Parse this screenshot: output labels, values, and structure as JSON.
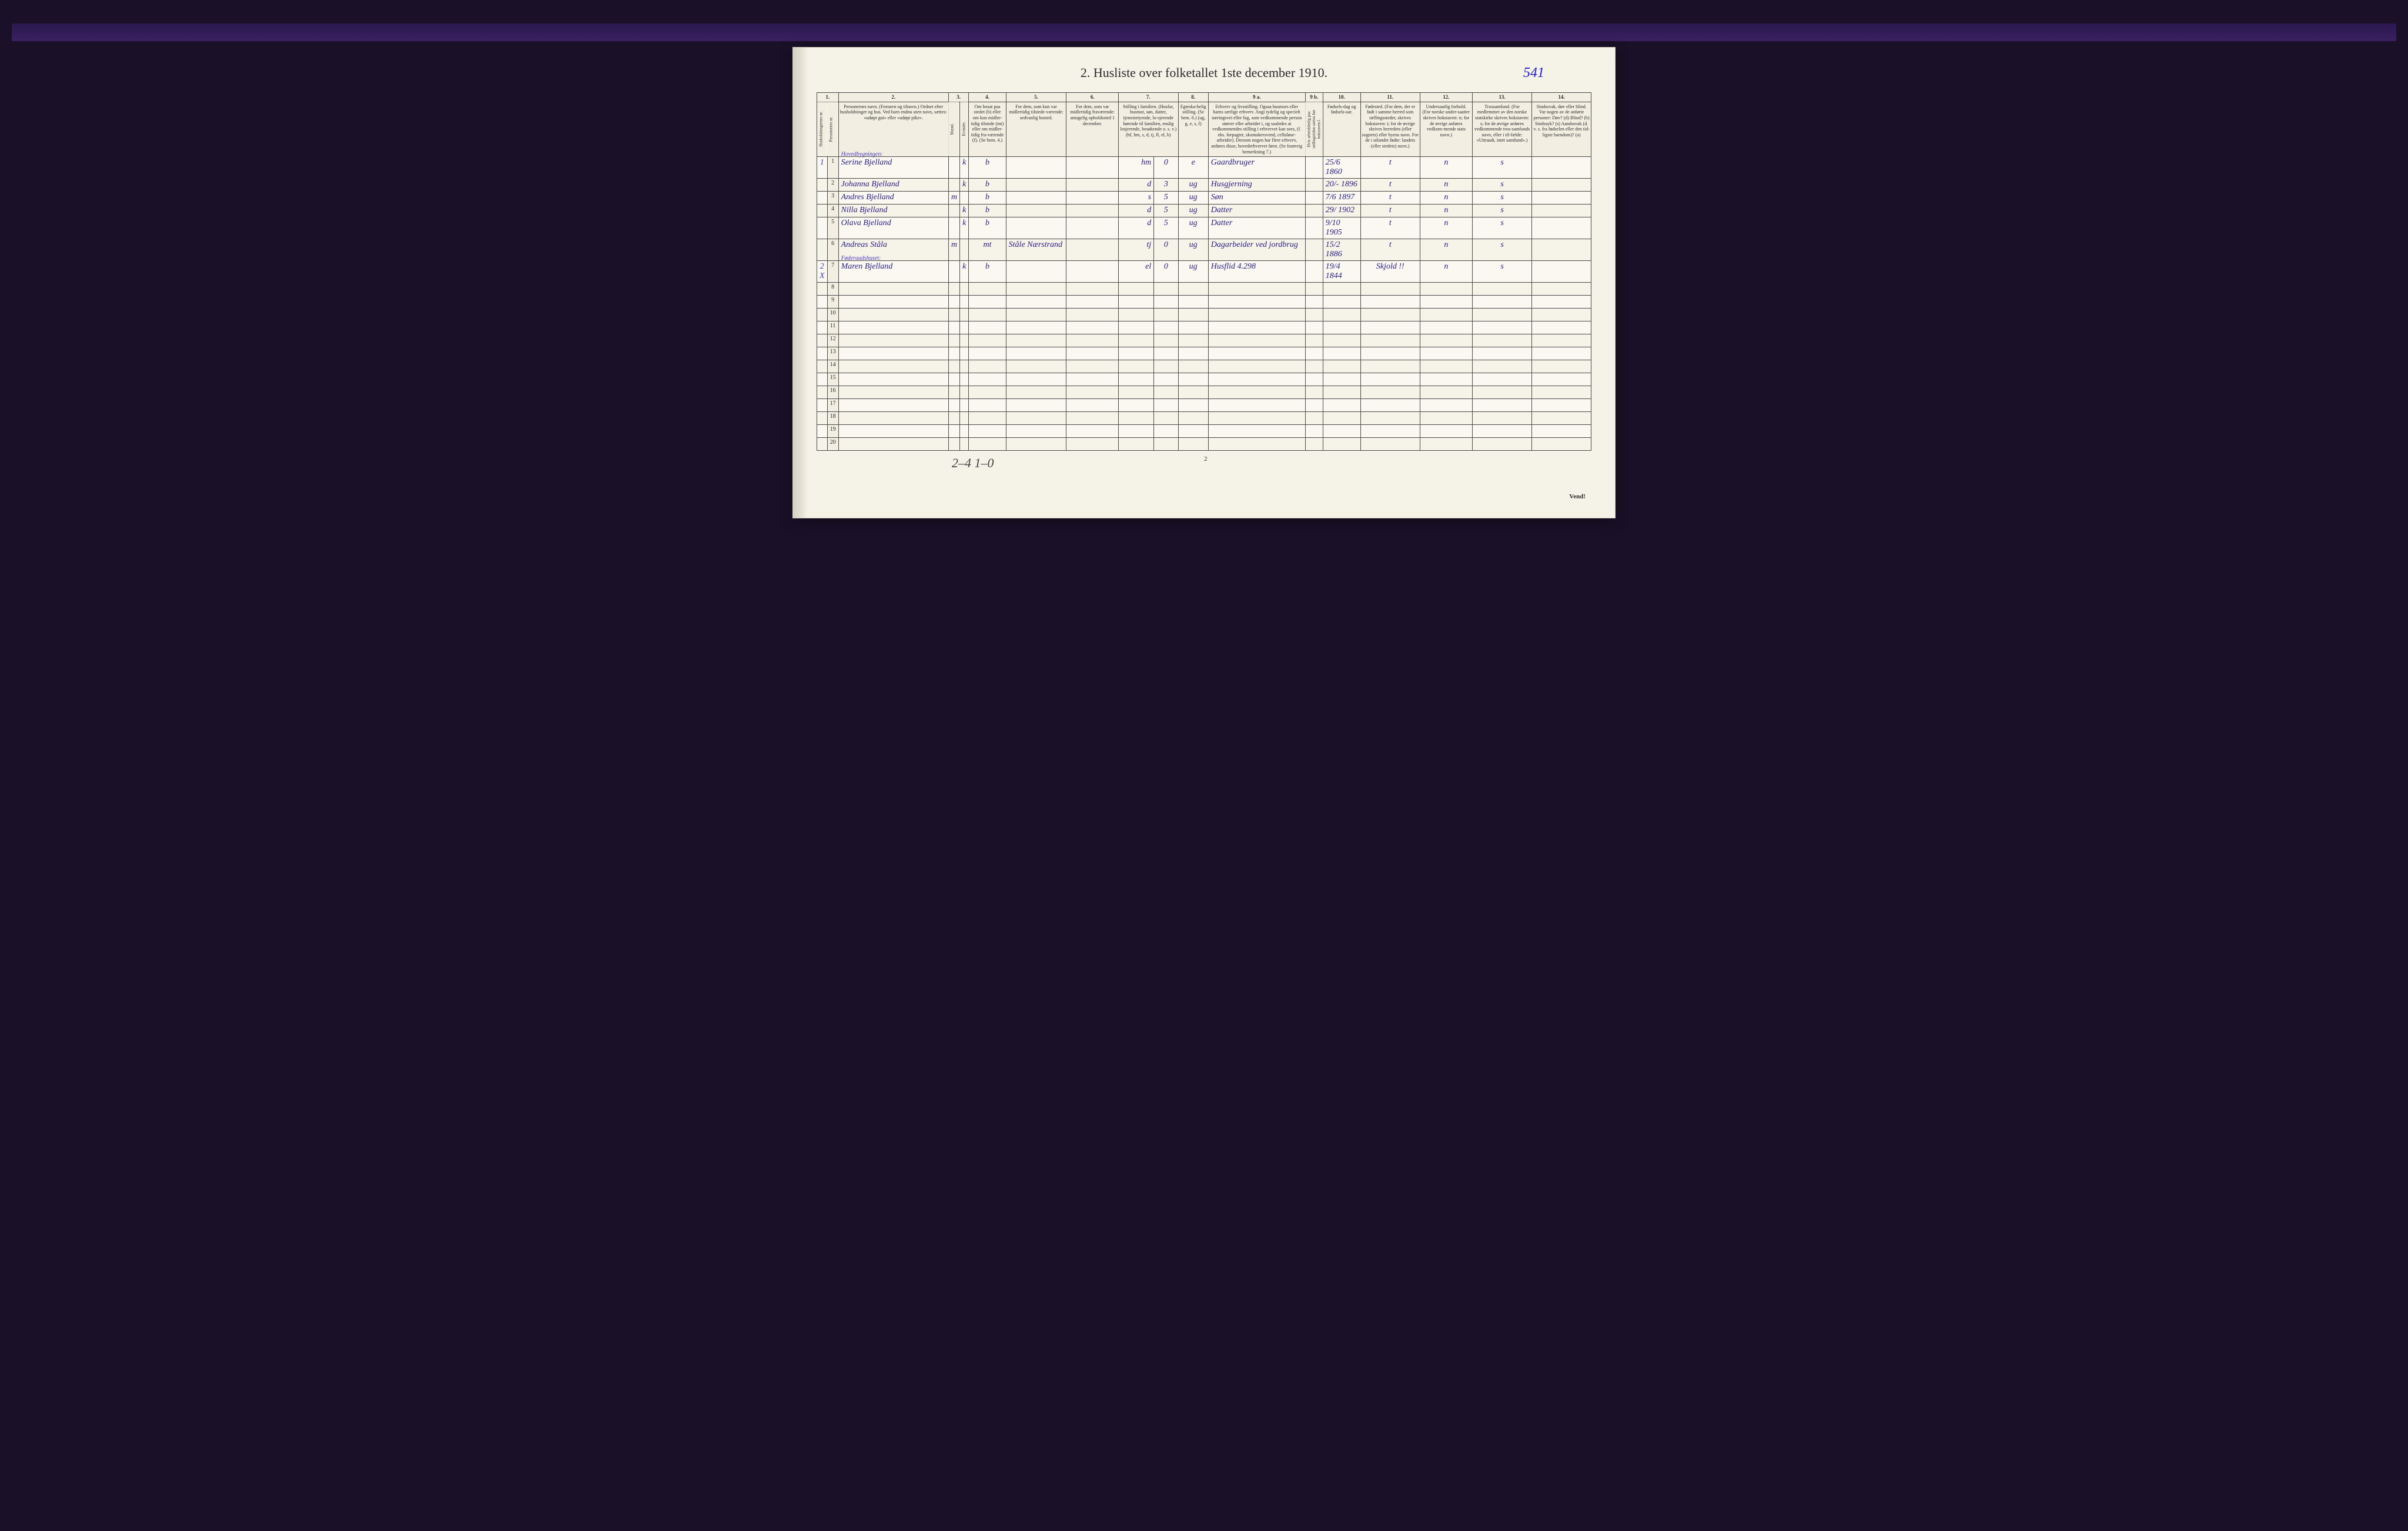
{
  "page_number_handwritten": "541",
  "title": "2.  Husliste over folketallet 1ste december 1910.",
  "footer_handwritten": "2–4   1–0",
  "footer_page": "2",
  "vend": "Vend!",
  "colors": {
    "page_bg": "#f5f2e8",
    "ink_printed": "#2a2a2a",
    "ink_handwritten": "#2a2080",
    "ink_pencil": "#444",
    "border": "#4a4a4a"
  },
  "column_numbers": [
    "1.",
    "2.",
    "3.",
    "4.",
    "5.",
    "6.",
    "7.",
    "8.",
    "9 a.",
    "9 b.",
    "10.",
    "11.",
    "12.",
    "13.",
    "14."
  ],
  "headers": {
    "c1a": "Husholdningernes nr.",
    "c1b": "Personernes nr.",
    "c2": "Personernes navn.\n(Fornavn og tilnavn.)\nOrdnet efter husholdninger og hus.\nVed barn endnu uten navn, sættes: «udøpt gut» eller «udøpt pike».",
    "c3_top": "Kjøn.",
    "c3a": "Mænd.",
    "c3b": "Kvinder.",
    "c3_bot": "m. k.",
    "c4": "Om bosat paa stedet (b) eller om kun midler-tidig tilstede (mt) eller om midler-tidig fra-værende (f).\n(Se bem. 4.)",
    "c5": "For dem, som kun var midlertidig tilstede-værende:\nsedvanlig bosted.",
    "c6": "For dem, som var midlertidig fraværende:\nantagelig opholdssted 1 december.",
    "c7": "Stilling i familien.\n(Husfar, husmor, søn, datter, tjenestetyende, lo-sjerende hørende til familien, enslig losjerende, besøkende o. s. v.)\n(hf, hm, s, d, tj, fl, el, b)",
    "c8": "Egteska-belig stilling.\n(Se bem. 6.)\n(ug, g, e, s, f)",
    "c9a": "Erhverv og livsstilling.\nOgsaa husmors eller barns særlige erhverv.\nAngi tydelig og specielt næringsvei eller fag, som vedkommende person utøver eller arbeider i, og saaledes at vedkommendes stilling i erhvervet kan sees, (f. eks. forpagter, skomakersvend, celluløse-arbeider). Dersom nogen har flere erhverv, anføres disse, hovederhvervet først.\n(Se forøvrig bemerkning 7.)",
    "c9b": "Hvis arbeidsledig paa tællingstiden sættes her bokstaven l.",
    "c10": "Fødsels-dag og fødsels-aar.",
    "c11": "Fødested.\n(For dem, der er født i samme herred som tællingsstedet, skrives bokstaven: t; for de øvrige skrives herredets (eller sognets) eller byens navn. For de i utlandet fødte: landets (eller stedets) navn.)",
    "c12": "Undersaatlig forhold.\n(For norske under-saatter skrives bokstaven: n; for de øvrige anføres vedkom-mende stats navn.)",
    "c13": "Trossamfund.\n(For medlemmer av den norske statskirke skrives bokstaven: s; for de øvrige anføres vedkommende tros-samfunds navn, eller i til-fælde: «Uttraadt, intet samfund».)",
    "c14": "Sindssvak, døv eller blind.\nVar nogen av de anførte personer:\nDøv? (d)\nBlind? (b)\nSindssyk? (s)\nAandssvak (d. v. s. fra fødselen eller den tid-ligste barndom)? (a)"
  },
  "group_label_1": "Hovedbygningen:",
  "group_label_2": "Føderaadshuset:",
  "rows": [
    {
      "hh": "1",
      "pn": "1",
      "name": "Serine Bjelland",
      "m": "",
      "k": "k",
      "res": "b",
      "c5": "",
      "c6": "",
      "fam": "hm",
      "c7b": "0",
      "eg": "e",
      "erhv": "Gaardbruger",
      "c9b": "",
      "fdt": "25/6 1860",
      "fsted": "t",
      "und": "n",
      "tro": "s",
      "c14": ""
    },
    {
      "hh": "",
      "pn": "2",
      "name": "Johanna Bjelland",
      "m": "",
      "k": "k",
      "res": "b",
      "c5": "",
      "c6": "",
      "fam": "d",
      "c7b": "3",
      "eg": "ug",
      "erhv": "Husgjerning",
      "c9b": "",
      "fdt": "20/- 1896",
      "fsted": "t",
      "und": "n",
      "tro": "s",
      "c14": ""
    },
    {
      "hh": "",
      "pn": "3",
      "name": "Andres Bjelland",
      "m": "m",
      "k": "",
      "res": "b",
      "c5": "",
      "c6": "",
      "fam": "s",
      "c7b": "5",
      "eg": "ug",
      "erhv": "Søn",
      "c9b": "",
      "fdt": "7/6 1897",
      "fsted": "t",
      "und": "n",
      "tro": "s",
      "c14": ""
    },
    {
      "hh": "",
      "pn": "4",
      "name": "Nilla Bjelland",
      "m": "",
      "k": "k",
      "res": "b",
      "c5": "",
      "c6": "",
      "fam": "d",
      "c7b": "5",
      "eg": "ug",
      "erhv": "Datter",
      "c9b": "",
      "fdt": "29/ 1902",
      "fsted": "t",
      "und": "n",
      "tro": "s",
      "c14": ""
    },
    {
      "hh": "",
      "pn": "5",
      "name": "Olava Bjelland",
      "m": "",
      "k": "k",
      "res": "b",
      "c5": "",
      "c6": "",
      "fam": "d",
      "c7b": "5",
      "eg": "ug",
      "erhv": "Datter",
      "c9b": "",
      "fdt": "9/10 1905",
      "fsted": "t",
      "und": "n",
      "tro": "s",
      "c14": ""
    },
    {
      "hh": "",
      "pn": "6",
      "name": "Andreas Ståla",
      "m": "m",
      "k": "",
      "res": "mt",
      "c5": "Ståle Nærstrand",
      "c6": "",
      "fam": "tj",
      "c7b": "0",
      "eg": "ug",
      "erhv": "Dagarbeider ved jordbrug",
      "c9b": "",
      "fdt": "15/2 1886",
      "fsted": "t",
      "und": "n",
      "tro": "s",
      "c14": ""
    },
    {
      "hh": "2 X",
      "pn": "7",
      "name": "Maren Bjelland",
      "m": "",
      "k": "k",
      "res": "b",
      "c5": "",
      "c6": "",
      "fam": "el",
      "c7b": "0",
      "eg": "ug",
      "erhv": "Husflid 4.298",
      "c9b": "",
      "fdt": "19/4 1844",
      "fsted": "Skjold !!",
      "und": "n",
      "tro": "s",
      "c14": ""
    },
    {
      "hh": "",
      "pn": "8",
      "name": "",
      "m": "",
      "k": "",
      "res": "",
      "c5": "",
      "c6": "",
      "fam": "",
      "c7b": "",
      "eg": "",
      "erhv": "",
      "c9b": "",
      "fdt": "",
      "fsted": "",
      "und": "",
      "tro": "",
      "c14": ""
    },
    {
      "hh": "",
      "pn": "9",
      "name": "",
      "m": "",
      "k": "",
      "res": "",
      "c5": "",
      "c6": "",
      "fam": "",
      "c7b": "",
      "eg": "",
      "erhv": "",
      "c9b": "",
      "fdt": "",
      "fsted": "",
      "und": "",
      "tro": "",
      "c14": ""
    },
    {
      "hh": "",
      "pn": "10",
      "name": "",
      "m": "",
      "k": "",
      "res": "",
      "c5": "",
      "c6": "",
      "fam": "",
      "c7b": "",
      "eg": "",
      "erhv": "",
      "c9b": "",
      "fdt": "",
      "fsted": "",
      "und": "",
      "tro": "",
      "c14": ""
    },
    {
      "hh": "",
      "pn": "11",
      "name": "",
      "m": "",
      "k": "",
      "res": "",
      "c5": "",
      "c6": "",
      "fam": "",
      "c7b": "",
      "eg": "",
      "erhv": "",
      "c9b": "",
      "fdt": "",
      "fsted": "",
      "und": "",
      "tro": "",
      "c14": ""
    },
    {
      "hh": "",
      "pn": "12",
      "name": "",
      "m": "",
      "k": "",
      "res": "",
      "c5": "",
      "c6": "",
      "fam": "",
      "c7b": "",
      "eg": "",
      "erhv": "",
      "c9b": "",
      "fdt": "",
      "fsted": "",
      "und": "",
      "tro": "",
      "c14": ""
    },
    {
      "hh": "",
      "pn": "13",
      "name": "",
      "m": "",
      "k": "",
      "res": "",
      "c5": "",
      "c6": "",
      "fam": "",
      "c7b": "",
      "eg": "",
      "erhv": "",
      "c9b": "",
      "fdt": "",
      "fsted": "",
      "und": "",
      "tro": "",
      "c14": ""
    },
    {
      "hh": "",
      "pn": "14",
      "name": "",
      "m": "",
      "k": "",
      "res": "",
      "c5": "",
      "c6": "",
      "fam": "",
      "c7b": "",
      "eg": "",
      "erhv": "",
      "c9b": "",
      "fdt": "",
      "fsted": "",
      "und": "",
      "tro": "",
      "c14": ""
    },
    {
      "hh": "",
      "pn": "15",
      "name": "",
      "m": "",
      "k": "",
      "res": "",
      "c5": "",
      "c6": "",
      "fam": "",
      "c7b": "",
      "eg": "",
      "erhv": "",
      "c9b": "",
      "fdt": "",
      "fsted": "",
      "und": "",
      "tro": "",
      "c14": ""
    },
    {
      "hh": "",
      "pn": "16",
      "name": "",
      "m": "",
      "k": "",
      "res": "",
      "c5": "",
      "c6": "",
      "fam": "",
      "c7b": "",
      "eg": "",
      "erhv": "",
      "c9b": "",
      "fdt": "",
      "fsted": "",
      "und": "",
      "tro": "",
      "c14": ""
    },
    {
      "hh": "",
      "pn": "17",
      "name": "",
      "m": "",
      "k": "",
      "res": "",
      "c5": "",
      "c6": "",
      "fam": "",
      "c7b": "",
      "eg": "",
      "erhv": "",
      "c9b": "",
      "fdt": "",
      "fsted": "",
      "und": "",
      "tro": "",
      "c14": ""
    },
    {
      "hh": "",
      "pn": "18",
      "name": "",
      "m": "",
      "k": "",
      "res": "",
      "c5": "",
      "c6": "",
      "fam": "",
      "c7b": "",
      "eg": "",
      "erhv": "",
      "c9b": "",
      "fdt": "",
      "fsted": "",
      "und": "",
      "tro": "",
      "c14": ""
    },
    {
      "hh": "",
      "pn": "19",
      "name": "",
      "m": "",
      "k": "",
      "res": "",
      "c5": "",
      "c6": "",
      "fam": "",
      "c7b": "",
      "eg": "",
      "erhv": "",
      "c9b": "",
      "fdt": "",
      "fsted": "",
      "und": "",
      "tro": "",
      "c14": ""
    },
    {
      "hh": "",
      "pn": "20",
      "name": "",
      "m": "",
      "k": "",
      "res": "",
      "c5": "",
      "c6": "",
      "fam": "",
      "c7b": "",
      "eg": "",
      "erhv": "",
      "c9b": "",
      "fdt": "",
      "fsted": "",
      "und": "",
      "tro": "",
      "c14": ""
    }
  ]
}
